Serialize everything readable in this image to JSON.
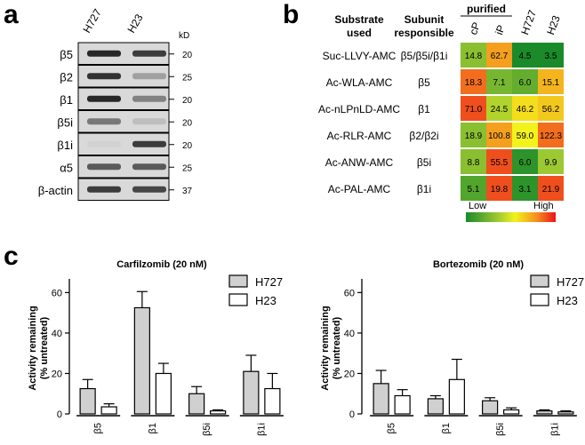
{
  "panel_a": {
    "letter": "a",
    "lanes": [
      "H727",
      "H23"
    ],
    "kd_label": "kD",
    "rows": [
      {
        "label": "β5",
        "kd": "20",
        "intensity": [
          0.95,
          0.85
        ]
      },
      {
        "label": "β2",
        "kd": "25",
        "intensity": [
          0.9,
          0.35
        ]
      },
      {
        "label": "β1",
        "kd": "20",
        "intensity": [
          0.95,
          0.5
        ]
      },
      {
        "label": "β5i",
        "kd": "20",
        "intensity": [
          0.55,
          0.2
        ]
      },
      {
        "label": "β1i",
        "kd": "20",
        "intensity": [
          0.1,
          0.85
        ]
      },
      {
        "label": "α5",
        "kd": "25",
        "intensity": [
          0.7,
          0.7
        ]
      },
      {
        "label": "β-actin",
        "kd": "37",
        "intensity": [
          0.85,
          0.8
        ]
      }
    ]
  },
  "panel_b": {
    "letter": "b",
    "headers": {
      "substrate": [
        "Substrate",
        "used"
      ],
      "subunit": [
        "Subunit",
        "responsible"
      ],
      "purified": "purified",
      "columns": [
        "cP",
        "iP",
        "H727",
        "H23"
      ]
    },
    "rows": [
      {
        "substrate": "Suc-LLVY-AMC",
        "subunit": "β5/β5i/β1i",
        "values": [
          "14.8",
          "62.7",
          "4.5",
          "3.5"
        ],
        "levels": [
          0.3,
          0.75,
          0.0,
          0.0
        ]
      },
      {
        "substrate": "Ac-WLA-AMC",
        "subunit": "β5",
        "values": [
          "18.3",
          "7.1",
          "6.0",
          "15.1"
        ],
        "levels": [
          0.85,
          0.25,
          0.2,
          0.7
        ]
      },
      {
        "substrate": "Ac-nLPnLD-AMC",
        "subunit": "β1",
        "values": [
          "71.0",
          "24.5",
          "46.2",
          "56.2"
        ],
        "levels": [
          0.9,
          0.4,
          0.6,
          0.65
        ]
      },
      {
        "substrate": "Ac-RLR-AMC",
        "subunit": "β2/β2i",
        "values": [
          "18.9",
          "100.8",
          "59.0",
          "122.3"
        ],
        "levels": [
          0.3,
          0.75,
          0.55,
          0.85
        ]
      },
      {
        "substrate": "Ac-ANW-AMC",
        "subunit": "β5i",
        "values": [
          "8.8",
          "55.5",
          "6.0",
          "9.9"
        ],
        "levels": [
          0.3,
          0.9,
          0.05,
          0.35
        ]
      },
      {
        "substrate": "Ac-PAL-AMC",
        "subunit": "β1i",
        "values": [
          "5.1",
          "19.8",
          "3.1",
          "21.9"
        ],
        "levels": [
          0.15,
          0.9,
          0.05,
          0.9
        ]
      }
    ],
    "legend": {
      "low": "Low",
      "high": "High"
    }
  },
  "panel_c": {
    "letter": "c"
  },
  "chart_data": [
    {
      "type": "bar",
      "title": "Carfilzomib (20 nM)",
      "ylabel": "Activity remaining\n(% untreated)",
      "categories": [
        "β5",
        "β1",
        "β5i",
        "β1i"
      ],
      "ylim": [
        0,
        65
      ],
      "yticks": [
        "0",
        "20",
        "40",
        "60"
      ],
      "series": [
        {
          "name": "H727",
          "color": "#d0d0d0",
          "values": [
            12.5,
            52.5,
            10,
            21
          ],
          "errors": [
            4.5,
            8,
            3.5,
            8
          ]
        },
        {
          "name": "H23",
          "color": "#ffffff",
          "values": [
            3.5,
            20,
            1.5,
            12.5
          ],
          "errors": [
            1.5,
            5,
            0.5,
            7.5
          ]
        }
      ]
    },
    {
      "type": "bar",
      "title": "Bortezomib (20 nM)",
      "ylabel": "Activity remaining\n(% untreated)",
      "categories": [
        "β5",
        "β1",
        "β5i",
        "β1i"
      ],
      "ylim": [
        0,
        65
      ],
      "yticks": [
        "0",
        "20",
        "40",
        "60"
      ],
      "series": [
        {
          "name": "H727",
          "color": "#d0d0d0",
          "values": [
            15,
            7.5,
            6.5,
            1.5
          ],
          "errors": [
            6.5,
            1.5,
            1.5,
            0.5
          ]
        },
        {
          "name": "H23",
          "color": "#ffffff",
          "values": [
            9,
            17,
            2,
            1
          ],
          "errors": [
            3,
            10,
            1,
            0.5
          ]
        }
      ]
    }
  ]
}
